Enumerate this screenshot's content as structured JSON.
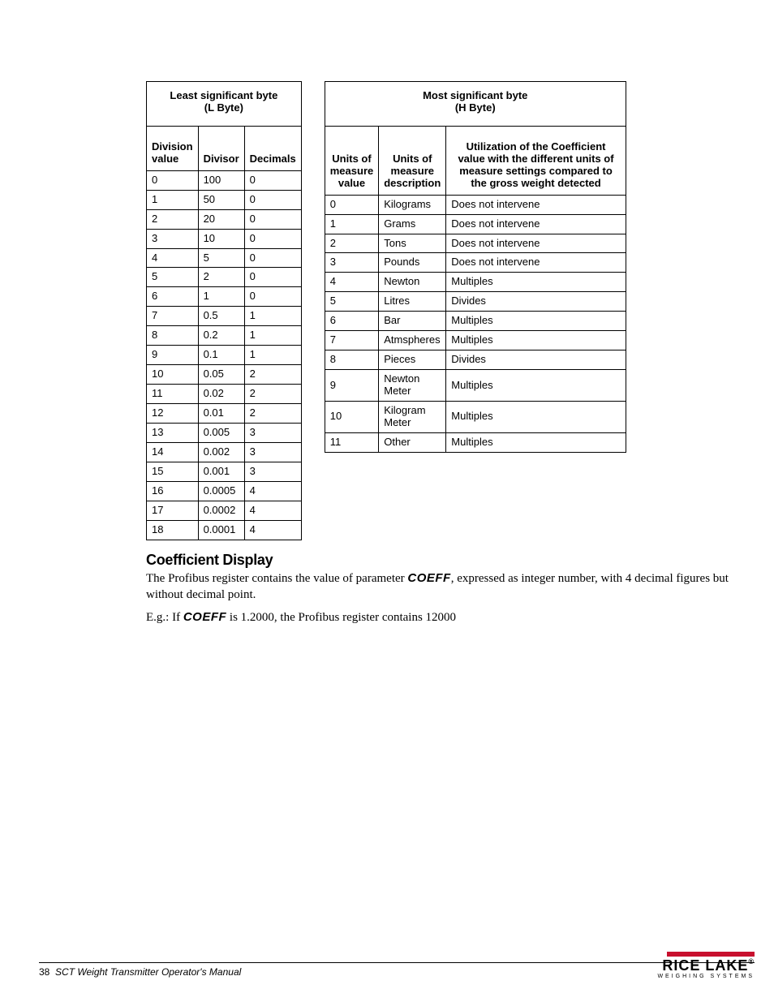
{
  "tables": {
    "left": {
      "title_line1": "Least significant byte",
      "title_line2": "(L Byte)",
      "col1": "Division value",
      "col2": "Divisor",
      "col3": "Decimals",
      "rows": [
        [
          "0",
          "100",
          "0"
        ],
        [
          "1",
          "50",
          "0"
        ],
        [
          "2",
          "20",
          "0"
        ],
        [
          "3",
          "10",
          "0"
        ],
        [
          "4",
          "5",
          "0"
        ],
        [
          "5",
          "2",
          "0"
        ],
        [
          "6",
          "1",
          "0"
        ],
        [
          "7",
          "0.5",
          "1"
        ],
        [
          "8",
          "0.2",
          "1"
        ],
        [
          "9",
          "0.1",
          "1"
        ],
        [
          "10",
          "0.05",
          "2"
        ],
        [
          "11",
          "0.02",
          "2"
        ],
        [
          "12",
          "0.01",
          "2"
        ],
        [
          "13",
          "0.005",
          "3"
        ],
        [
          "14",
          "0.002",
          "3"
        ],
        [
          "15",
          "0.001",
          "3"
        ],
        [
          "16",
          "0.0005",
          "4"
        ],
        [
          "17",
          "0.0002",
          "4"
        ],
        [
          "18",
          "0.0001",
          "4"
        ]
      ]
    },
    "right": {
      "title_line1": "Most significant byte",
      "title_line2": "(H Byte)",
      "col1": "Units of measure value",
      "col2": "Units of measure description",
      "col3": "Utilization of the Coefficient value with the different units of measure settings compared to the gross weight detected",
      "rows": [
        [
          "0",
          "Kilograms",
          "Does not intervene"
        ],
        [
          "1",
          "Grams",
          "Does not intervene"
        ],
        [
          "2",
          "Tons",
          "Does not intervene"
        ],
        [
          "3",
          "Pounds",
          "Does not intervene"
        ],
        [
          "4",
          "Newton",
          "Multiples"
        ],
        [
          "5",
          "Litres",
          "Divides"
        ],
        [
          "6",
          "Bar",
          "Multiples"
        ],
        [
          "7",
          "Atmspheres",
          "Multiples"
        ],
        [
          "8",
          "Pieces",
          "Divides"
        ],
        [
          "9",
          "Newton Meter",
          "Multiples"
        ],
        [
          "10",
          "Kilogram Meter",
          "Multiples"
        ],
        [
          "11",
          "Other",
          "Multiples"
        ]
      ]
    }
  },
  "section": {
    "heading": "Coefficient Display",
    "p1_a": "The Profibus register contains the value of parameter ",
    "p1_coeff": "COEFF",
    "p1_b": ", expressed as integer number, with 4 decimal figures but without decimal point.",
    "p2_a": "E.g.: If ",
    "p2_coeff": "COEFF",
    "p2_b": " is 1.2000, the Profibus register contains 12000"
  },
  "footer": {
    "page": "38",
    "title": "SCT Weight Transmitter  Operator's Manual",
    "logo_name": "RICE LAKE",
    "logo_tag": "WEIGHING SYSTEMS",
    "logo_bar_color": "#c8102e"
  },
  "style": {
    "body_width": 954,
    "body_height": 1235,
    "table_font_size": 13,
    "heading_font_size": 18,
    "body_font_size": 15,
    "footer_font_size": 12,
    "border_color": "#000000",
    "bg_color": "#ffffff"
  }
}
